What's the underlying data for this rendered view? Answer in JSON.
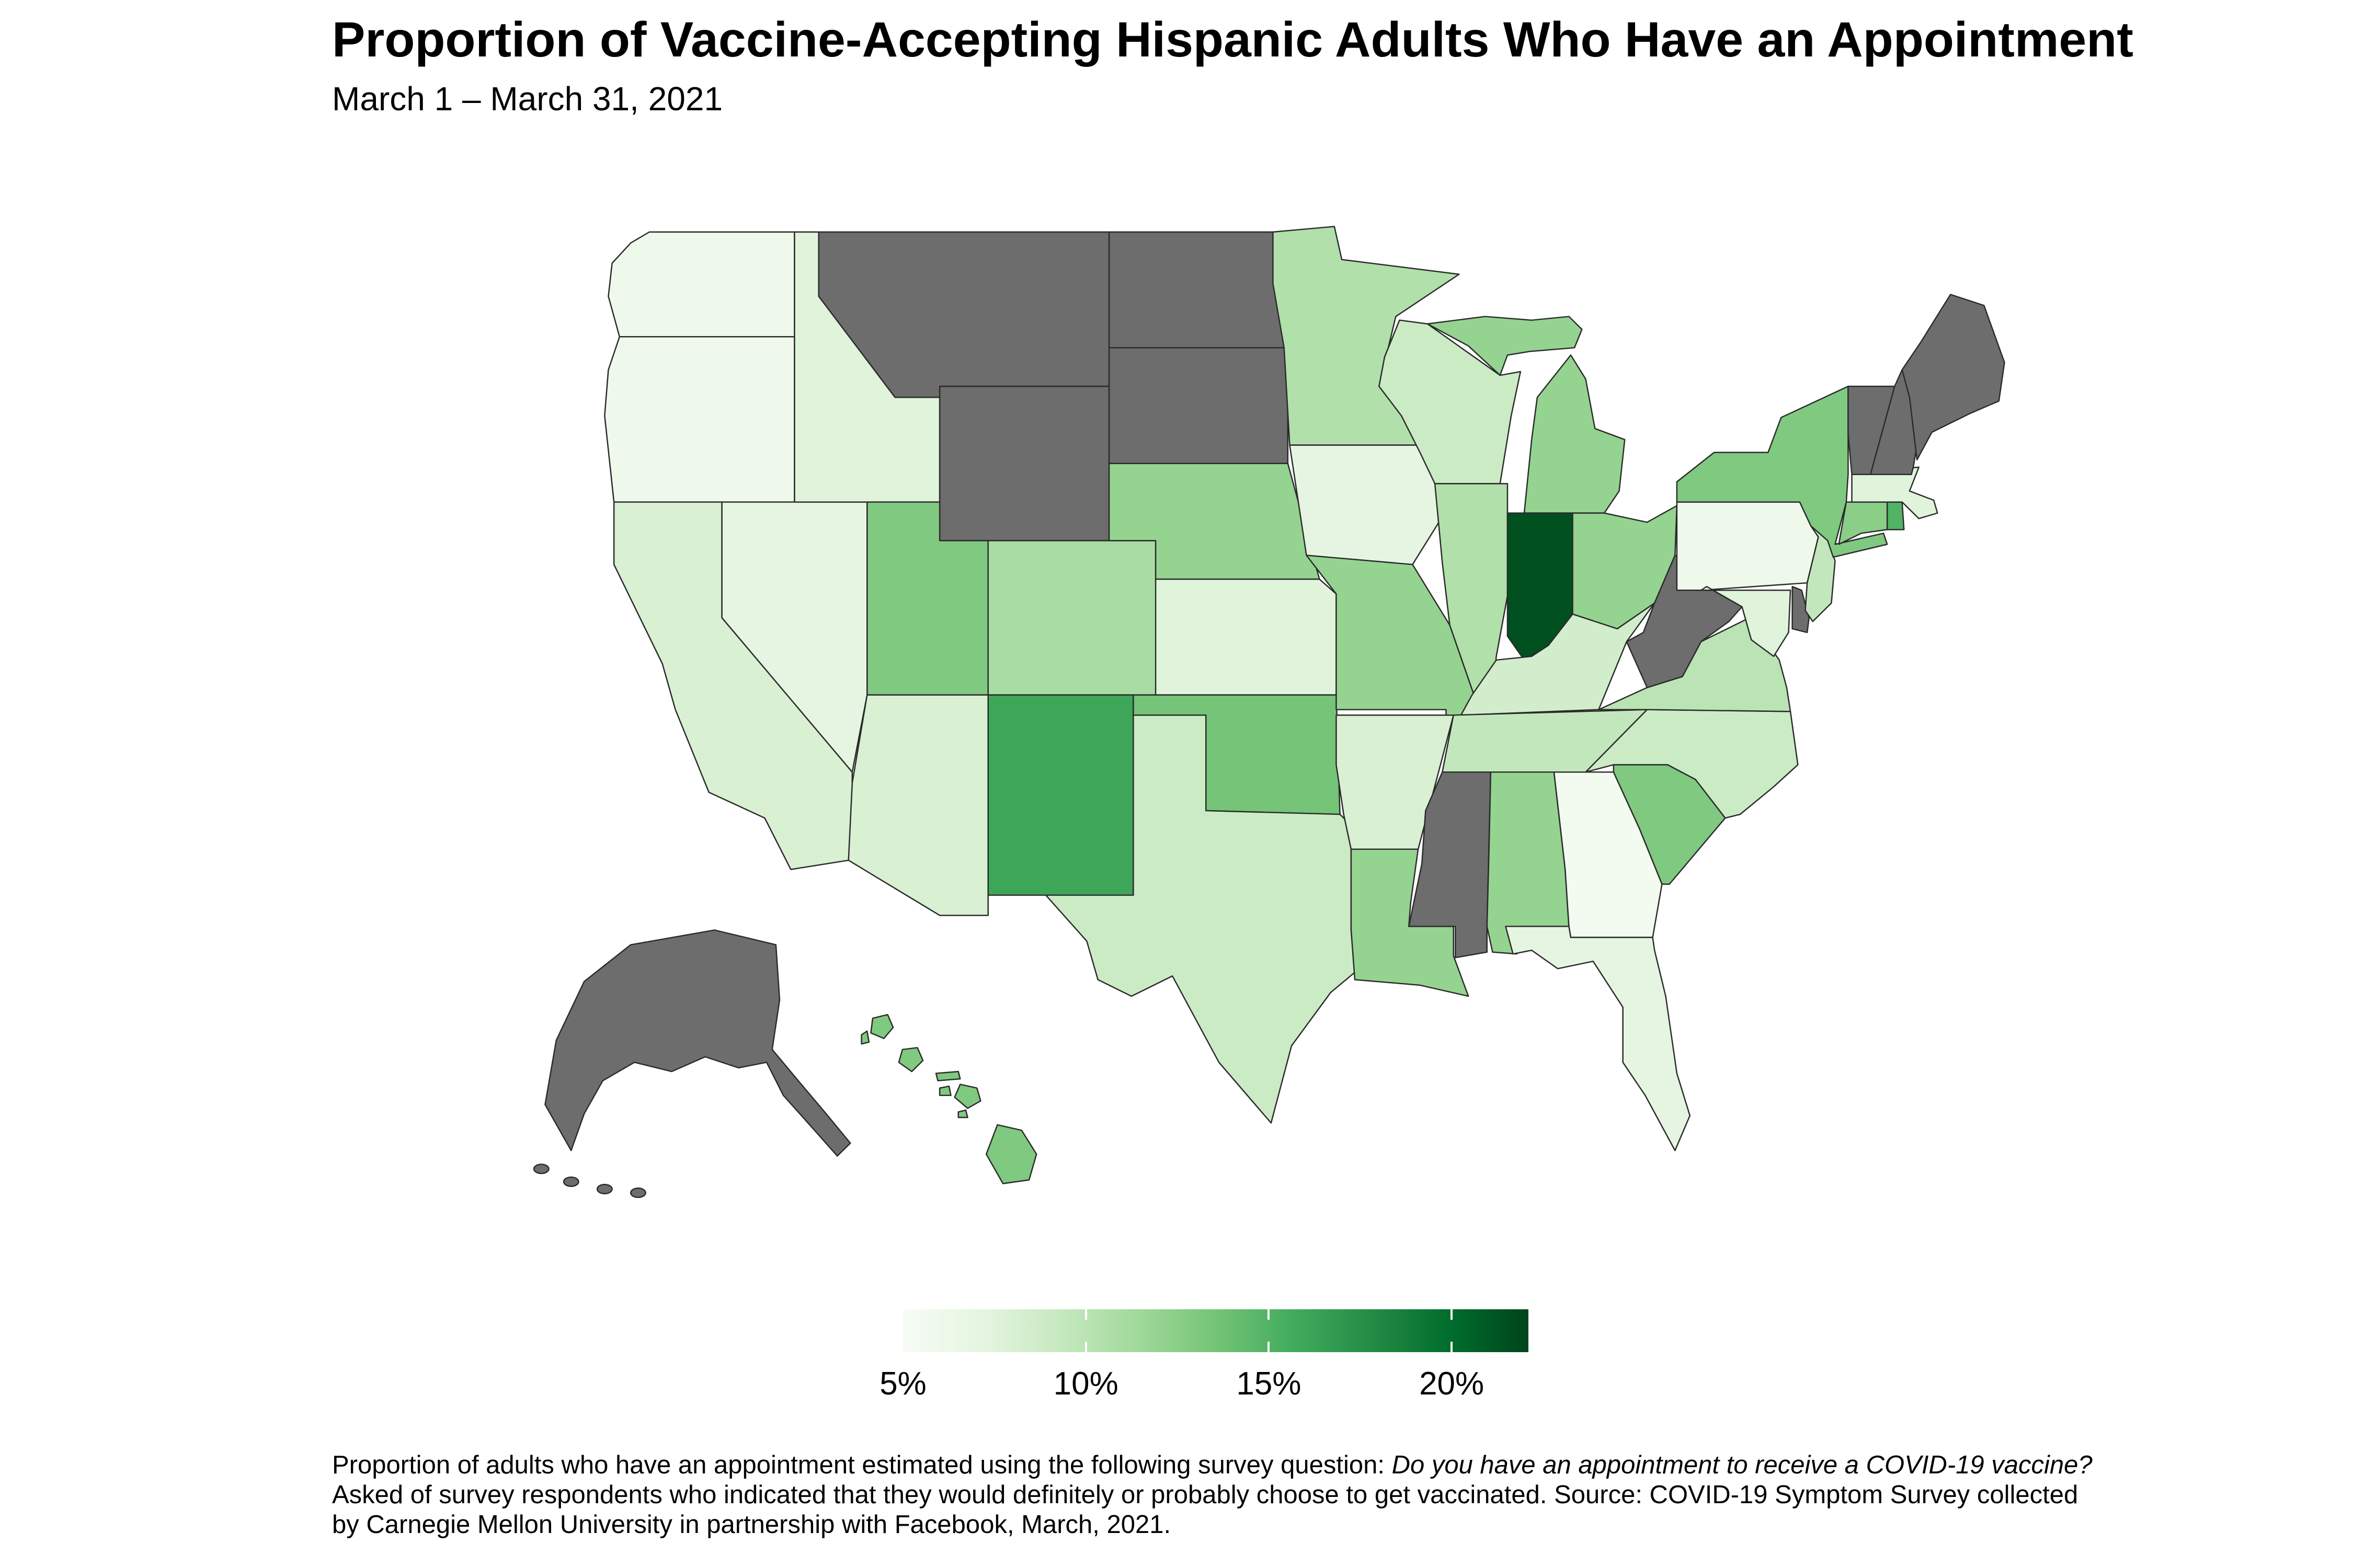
{
  "header": {
    "title": "Proportion of Vaccine-Accepting Hispanic Adults Who Have an Appointment",
    "subtitle": "March 1 – March 31, 2021"
  },
  "chart_data": {
    "type": "choropleth",
    "region": "United States, by state",
    "unit": "percent of vaccine-accepting Hispanic adults with a vaccine appointment",
    "color_scale": {
      "palette_name": "Greens (light to dark)",
      "palette": [
        "#f7fcf5",
        "#e5f5e0",
        "#c7e9c0",
        "#a1d99b",
        "#74c476",
        "#41ab5d",
        "#238b45",
        "#006d2c",
        "#00441b"
      ],
      "domain": [
        5,
        22.1
      ],
      "na_color": "#6d6d6d",
      "border_color": "#2b2b2b"
    },
    "legend": {
      "position": "bottom-center",
      "ticks": [
        {
          "label": "5%",
          "value": 5
        },
        {
          "label": "10%",
          "value": 10
        },
        {
          "label": "15%",
          "value": 15
        },
        {
          "label": "20%",
          "value": 20
        }
      ]
    },
    "states": [
      {
        "abbr": "WA",
        "name": "Washington",
        "value": 6
      },
      {
        "abbr": "OR",
        "name": "Oregon",
        "value": 6
      },
      {
        "abbr": "CA",
        "name": "California",
        "value": 8
      },
      {
        "abbr": "NV",
        "name": "Nevada",
        "value": 7
      },
      {
        "abbr": "ID",
        "name": "Idaho",
        "value": 7.5
      },
      {
        "abbr": "MT",
        "name": "Montana",
        "value": null
      },
      {
        "abbr": "WY",
        "name": "Wyoming",
        "value": null
      },
      {
        "abbr": "UT",
        "name": "Utah",
        "value": 13
      },
      {
        "abbr": "CO",
        "name": "Colorado",
        "value": 11
      },
      {
        "abbr": "AZ",
        "name": "Arizona",
        "value": 8
      },
      {
        "abbr": "NM",
        "name": "New Mexico",
        "value": 16
      },
      {
        "abbr": "ND",
        "name": "North Dakota",
        "value": null
      },
      {
        "abbr": "SD",
        "name": "South Dakota",
        "value": null
      },
      {
        "abbr": "NE",
        "name": "Nebraska",
        "value": 12
      },
      {
        "abbr": "KS",
        "name": "Kansas",
        "value": 7.5
      },
      {
        "abbr": "OK",
        "name": "Oklahoma",
        "value": 13.5
      },
      {
        "abbr": "TX",
        "name": "Texas",
        "value": 9
      },
      {
        "abbr": "MN",
        "name": "Minnesota",
        "value": 10.5
      },
      {
        "abbr": "IA",
        "name": "Iowa",
        "value": 7
      },
      {
        "abbr": "MO",
        "name": "Missouri",
        "value": 12
      },
      {
        "abbr": "AR",
        "name": "Arkansas",
        "value": 8
      },
      {
        "abbr": "LA",
        "name": "Louisiana",
        "value": 12
      },
      {
        "abbr": "WI",
        "name": "Wisconsin",
        "value": 9
      },
      {
        "abbr": "IL",
        "name": "Illinois",
        "value": 10.5
      },
      {
        "abbr": "MI",
        "name": "Michigan",
        "value": 12
      },
      {
        "abbr": "IN",
        "name": "Indiana",
        "value": 21.5
      },
      {
        "abbr": "OH",
        "name": "Ohio",
        "value": 12
      },
      {
        "abbr": "KY",
        "name": "Kentucky",
        "value": 8.5
      },
      {
        "abbr": "TN",
        "name": "Tennessee",
        "value": 9.5
      },
      {
        "abbr": "MS",
        "name": "Mississippi",
        "value": null
      },
      {
        "abbr": "AL",
        "name": "Alabama",
        "value": 12
      },
      {
        "abbr": "GA",
        "name": "Georgia",
        "value": 5.5
      },
      {
        "abbr": "FL",
        "name": "Florida",
        "value": 7
      },
      {
        "abbr": "SC",
        "name": "South Carolina",
        "value": 13
      },
      {
        "abbr": "NC",
        "name": "North Carolina",
        "value": 9
      },
      {
        "abbr": "VA",
        "name": "Virginia",
        "value": 10
      },
      {
        "abbr": "WV",
        "name": "West Virginia",
        "value": null
      },
      {
        "abbr": "PA",
        "name": "Pennsylvania",
        "value": 6
      },
      {
        "abbr": "NY",
        "name": "New York",
        "value": 13
      },
      {
        "abbr": "NJ",
        "name": "New Jersey",
        "value": 9.5
      },
      {
        "abbr": "DE",
        "name": "Delaware",
        "value": null
      },
      {
        "abbr": "MD",
        "name": "Maryland",
        "value": 7.5
      },
      {
        "abbr": "CT",
        "name": "Connecticut",
        "value": 12.5
      },
      {
        "abbr": "RI",
        "name": "Rhode Island",
        "value": 15
      },
      {
        "abbr": "MA",
        "name": "Massachusetts",
        "value": 7.5
      },
      {
        "abbr": "VT",
        "name": "Vermont",
        "value": null
      },
      {
        "abbr": "NH",
        "name": "New Hampshire",
        "value": null
      },
      {
        "abbr": "ME",
        "name": "Maine",
        "value": null
      },
      {
        "abbr": "AK",
        "name": "Alaska",
        "value": null
      },
      {
        "abbr": "HI",
        "name": "Hawaii",
        "value": 13
      }
    ]
  },
  "caption": {
    "line1_regular": "Proportion of adults who have an appointment estimated using the following survey question: ",
    "line1_italic": "Do you have an appointment to receive a COVID-19 vaccine?",
    "line2": "Asked of survey respondents who indicated that they would definitely or probably choose to get vaccinated. Source: COVID-19 Symptom Survey collected",
    "line3": "by Carnegie Mellon University in partnership with Facebook, March, 2021."
  }
}
